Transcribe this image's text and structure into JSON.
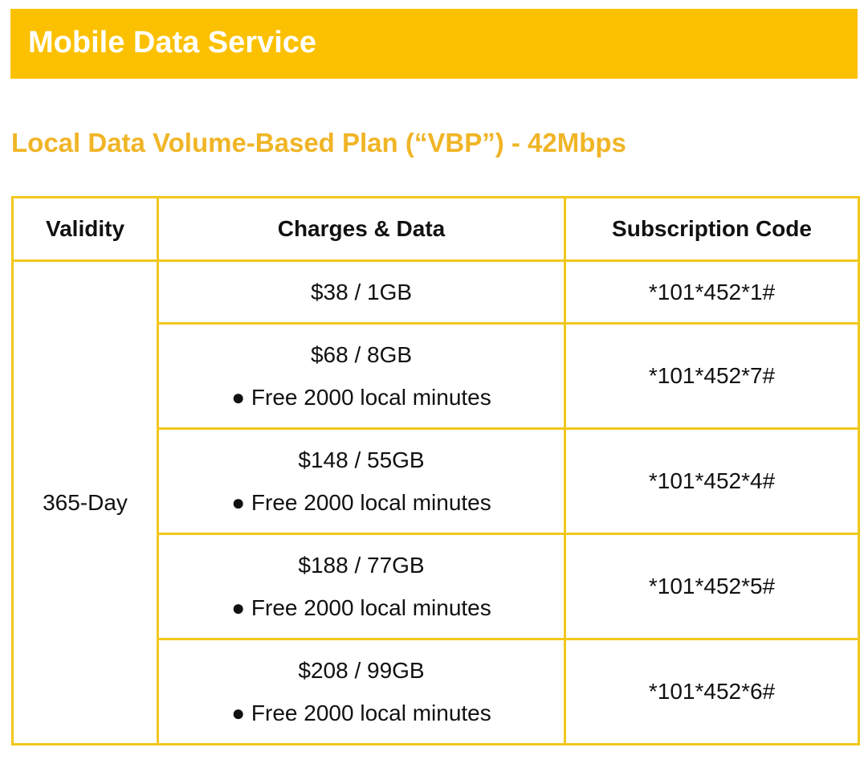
{
  "header": {
    "title": "Mobile Data Service"
  },
  "section": {
    "title": "Local Data Volume-Based Plan (“VBP”) - 42Mbps"
  },
  "table": {
    "headers": [
      "Validity",
      "Charges & Data",
      "Subscription Code"
    ],
    "validity": "365-Day",
    "rows": [
      {
        "charge": "$38 / 1GB",
        "code": "*101*452*1#"
      },
      {
        "charge": "$68 / 8GB",
        "note": "● Free 2000 local minutes",
        "code": "*101*452*7#"
      },
      {
        "charge": "$148 / 55GB",
        "note": "● Free 2000 local minutes",
        "code": "*101*452*4#"
      },
      {
        "charge": "$188 / 77GB",
        "note": "● Free 2000 local minutes",
        "code": "*101*452*5#"
      },
      {
        "charge": "$208 / 99GB",
        "note": "● Free 2000 local minutes",
        "code": "*101*452*6#"
      }
    ]
  }
}
